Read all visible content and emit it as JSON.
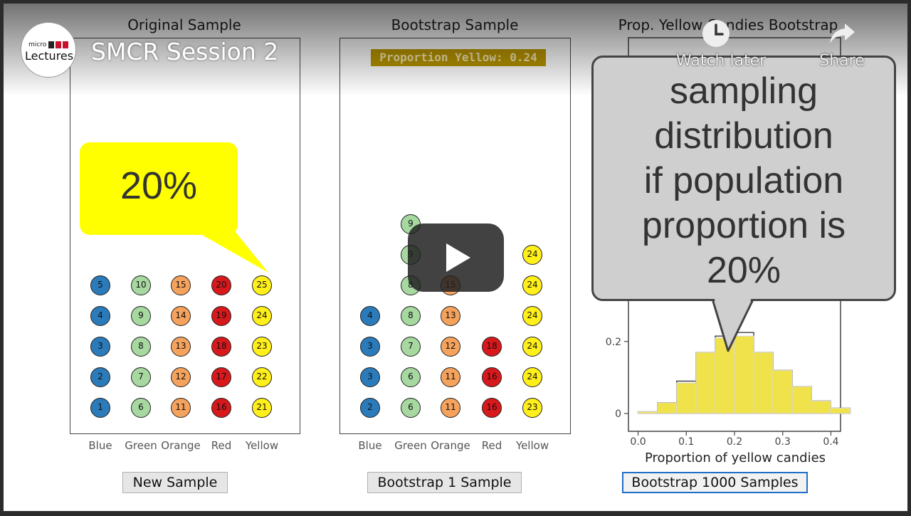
{
  "video": {
    "title": "SMCR Session 2",
    "channel_logo": {
      "small": "micro",
      "main": "Lectures"
    },
    "actions": [
      {
        "label": "Watch later",
        "icon": "clock-icon"
      },
      {
        "label": "Share",
        "icon": "share-arrow-icon"
      }
    ],
    "play_icon": "play-icon"
  },
  "panels": {
    "original": {
      "title": "Original Sample",
      "button": "New Sample"
    },
    "bootstrap": {
      "title": "Bootstrap Sample",
      "button": "Bootstrap 1 Sample",
      "badge": "Proportion Yellow: 0.24"
    },
    "distribution": {
      "title": "Prop. Yellow Candies Bootstrap",
      "button": "Bootstrap 1000 Samples",
      "xlabel": "Proportion of yellow candies"
    }
  },
  "categories": [
    "Blue",
    "Green",
    "Orange",
    "Red",
    "Yellow"
  ],
  "colors": {
    "Blue": "#2b7bba",
    "Green": "#a6d8a0",
    "Orange": "#f5a25d",
    "Red": "#d7191c",
    "Yellow": "#ffef1a"
  },
  "original_sample": {
    "Blue": [
      "1",
      "2",
      "3",
      "4",
      "5"
    ],
    "Green": [
      "6",
      "7",
      "8",
      "9",
      "10"
    ],
    "Orange": [
      "11",
      "12",
      "13",
      "14",
      "15"
    ],
    "Red": [
      "16",
      "17",
      "18",
      "19",
      "20"
    ],
    "Yellow": [
      "21",
      "22",
      "23",
      "24",
      "25"
    ]
  },
  "bootstrap_sample": {
    "Blue": [
      "2",
      "3",
      "3",
      "4"
    ],
    "Green": [
      "6",
      "6",
      "7",
      "8",
      "8",
      "9",
      "9"
    ],
    "Orange": [
      "11",
      "11",
      "12",
      "13",
      "15"
    ],
    "Red": [
      "16",
      "16",
      "18"
    ],
    "Yellow": [
      "23",
      "24",
      "24",
      "24",
      "24",
      "24"
    ]
  },
  "callouts": {
    "yellow": "20%",
    "gray": [
      "sampling",
      "distribution",
      "if population",
      "proportion is",
      "20%"
    ]
  },
  "chart_data": {
    "type": "bar",
    "title": "Prop. Yellow Candies Bootstrap",
    "xlabel": "Proportion of yellow candies",
    "ylabel": "",
    "xlim": [
      -0.02,
      0.42
    ],
    "ylim": [
      0,
      1
    ],
    "x_ticks": [
      "0.0",
      "0.1",
      "0.2",
      "0.3",
      "0.4"
    ],
    "y_ticks": [
      "0",
      "0.2"
    ],
    "bin_width": 0.04,
    "bins": [
      0.0,
      0.04,
      0.08,
      0.12,
      0.16,
      0.2,
      0.24,
      0.28,
      0.32,
      0.36,
      0.4
    ],
    "values": [
      0.005,
      0.03,
      0.085,
      0.17,
      0.21,
      0.215,
      0.17,
      0.12,
      0.075,
      0.035,
      0.015
    ],
    "outline_values": [
      0.005,
      0.03,
      0.09,
      0.17,
      0.215,
      0.225,
      0.17,
      0.12,
      0.075,
      0.035,
      0.015
    ],
    "grid": false,
    "bar_color": "#f0e24a"
  }
}
